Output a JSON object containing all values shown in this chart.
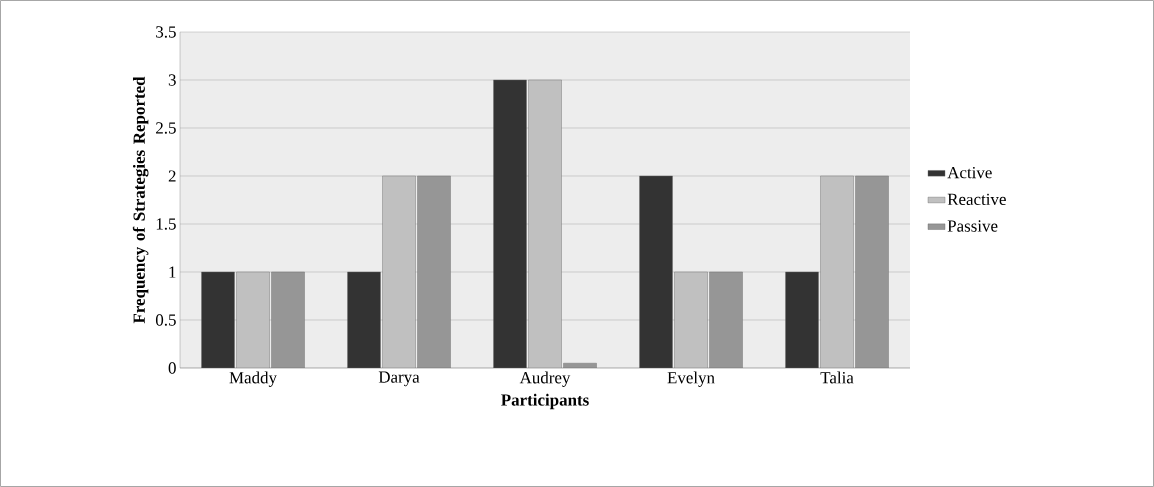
{
  "chart_data": {
    "type": "bar",
    "xlabel": "Participants",
    "ylabel": "Frequency of Strategies Reported",
    "categories": [
      "Maddy",
      "Darya",
      "Audrey",
      "Evelyn",
      "Talia"
    ],
    "series": [
      {
        "name": "Active",
        "color": "#333333",
        "values": [
          1,
          1,
          3,
          2,
          1
        ]
      },
      {
        "name": "Reactive",
        "color": "#c0c0c0",
        "values": [
          1,
          2,
          3,
          1,
          2
        ]
      },
      {
        "name": "Passive",
        "color": "#969696",
        "values": [
          1,
          2,
          0.05,
          1,
          2
        ]
      }
    ],
    "ylim": [
      0,
      3.5
    ],
    "yticks": [
      0,
      0.5,
      1,
      1.5,
      2,
      2.5,
      3,
      3.5
    ],
    "grid": "y",
    "legend": "right"
  }
}
